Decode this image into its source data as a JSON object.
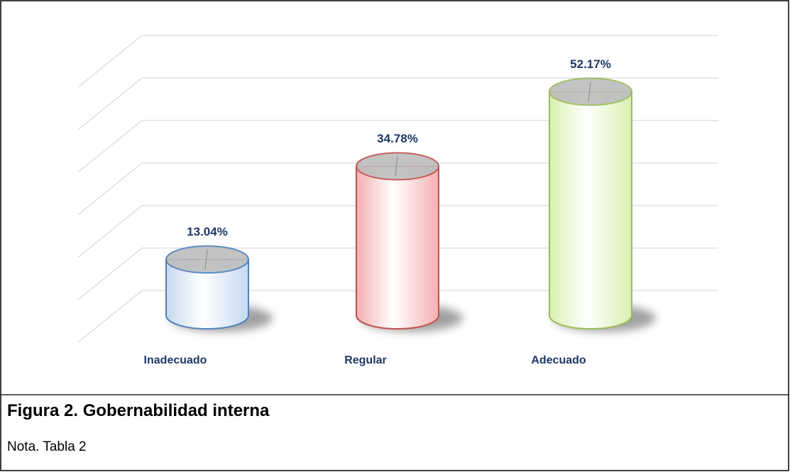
{
  "chart_data": {
    "type": "bar",
    "categories": [
      "Inadecuado",
      "Regular",
      "Adecuado"
    ],
    "values": [
      13.04,
      34.78,
      52.17
    ],
    "value_labels": [
      "13.04%",
      "34.78%",
      "52.17%"
    ],
    "colors": [
      "#c6d9f1",
      "#f4b0b0",
      "#d8f0b0"
    ],
    "ylim": [
      0,
      60
    ],
    "yticks": [
      0,
      10,
      20,
      30,
      40,
      50,
      60
    ],
    "grid": true
  },
  "caption": "Figura 2. Gobernabilidad interna",
  "note": "Nota. Tabla 2"
}
